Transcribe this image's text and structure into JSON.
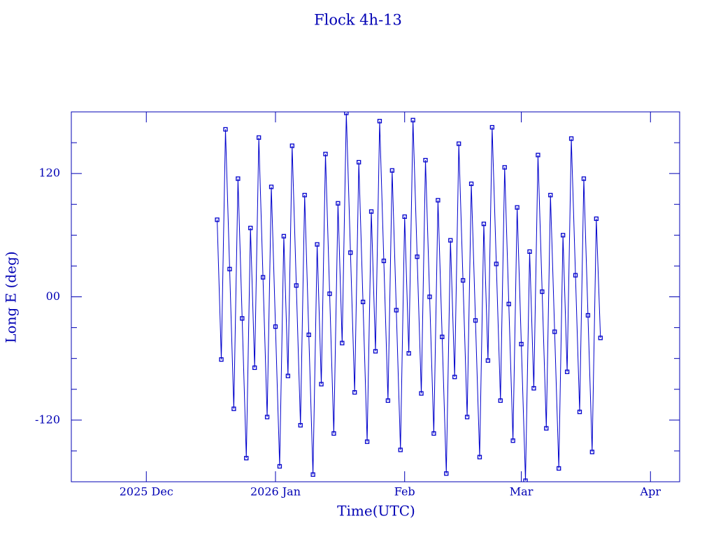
{
  "chart_data": {
    "type": "line",
    "title": "Flock 4h-13",
    "x_label": "Time(UTC)",
    "y_label": "Long E (deg)",
    "color": "#0000cc",
    "xlim": [
      0,
      146
    ],
    "xticks": [
      {
        "value": 18,
        "label": "2025 Dec"
      },
      {
        "value": 49,
        "label": "2026 Jan"
      },
      {
        "value": 80,
        "label": "Feb"
      },
      {
        "value": 108,
        "label": "Mar"
      },
      {
        "value": 139,
        "label": "Apr"
      }
    ],
    "ylim": [
      -180,
      180
    ],
    "yticks": [
      {
        "value": -120,
        "label": "-120"
      },
      {
        "value": 0,
        "label": "00"
      },
      120
    ],
    "yminor_ticks": [
      -150,
      -90,
      -60,
      -30,
      30,
      60,
      90,
      150
    ],
    "x": [
      35,
      36,
      37,
      38,
      39,
      40,
      41,
      42,
      43,
      44,
      45,
      46,
      47,
      48,
      49,
      50,
      51,
      52,
      53,
      54,
      55,
      56,
      57,
      58,
      59,
      60,
      61,
      62,
      63,
      64,
      65,
      66,
      67,
      68,
      69,
      70,
      71,
      72,
      73,
      74,
      75,
      76,
      77,
      78,
      79,
      80,
      81,
      82,
      83,
      84,
      85,
      86,
      87,
      88,
      89,
      90,
      91,
      92,
      93,
      94,
      95,
      96,
      97,
      98,
      99,
      100,
      101,
      102,
      103,
      104,
      105,
      106,
      107,
      108,
      109,
      110,
      111,
      112,
      113,
      114,
      115,
      116,
      117,
      118,
      119,
      120,
      121,
      122,
      123,
      124,
      125,
      126,
      127
    ],
    "values": [
      75,
      -61,
      163,
      27,
      -109,
      115,
      -21,
      -157,
      67,
      -69,
      155,
      19,
      -117,
      107,
      -29,
      -165,
      59,
      -77,
      147,
      11,
      -125,
      99,
      -37,
      -173,
      51,
      -85,
      139,
      3,
      -133,
      91,
      -45,
      179,
      43,
      -93,
      131,
      -5,
      -141,
      83,
      -53,
      171,
      35,
      -101,
      123,
      -13,
      -149,
      78,
      -55,
      172,
      39,
      -94,
      133,
      0,
      -133,
      94,
      -39,
      -172,
      55,
      -78,
      149,
      16,
      -117,
      110,
      -23,
      -156,
      71,
      -62,
      165,
      32,
      -101,
      126,
      -7,
      -140,
      87,
      -46,
      -179,
      44,
      -89,
      138,
      5,
      -128,
      99,
      -34,
      -167,
      60,
      -73,
      154,
      21,
      -112,
      115,
      -18,
      -151,
      76,
      -40
    ]
  }
}
